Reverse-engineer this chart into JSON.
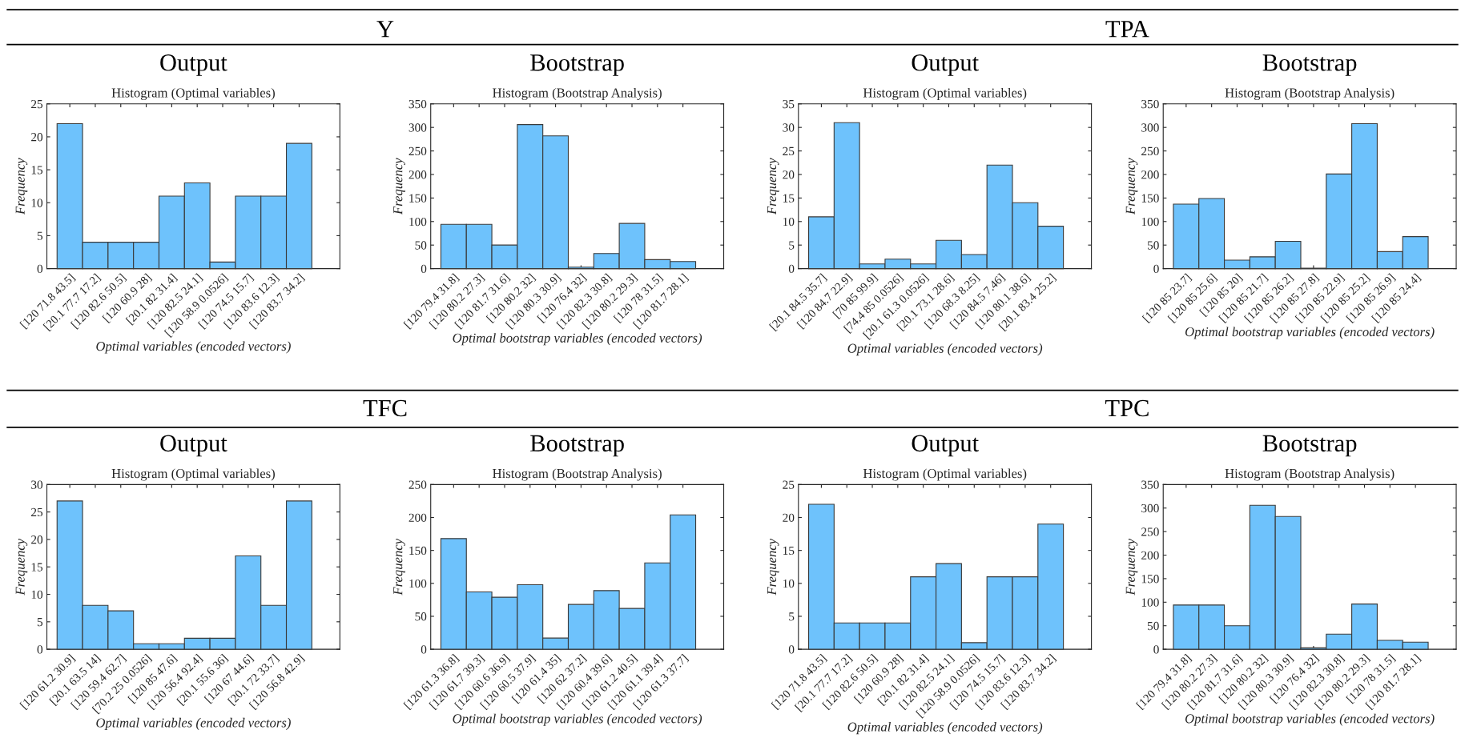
{
  "chart_data": [
    {
      "type": "bar",
      "title": "Output",
      "subtitle": "Histogram (Optimal variables)",
      "xlabel": "Optimal variables (encoded vectors)",
      "ylabel": "Frequency",
      "annotations": [
        "Y"
      ],
      "color": "#6ec2fc",
      "categories": [
        "[120 71.8 43.5]",
        "[20.1 77.7 17.2]",
        "[120 82.6 50.5]",
        "[120 60.9 28]",
        "[20.1 82 31.4]",
        "[120 82.5 24.1]",
        "[120 58.9 0.0526]",
        "[120 74.5 15.7]",
        "[120 83.6 12.3]",
        "[120 83.7 34.2]"
      ],
      "values": [
        22,
        4,
        4,
        4,
        11,
        13,
        1,
        11,
        11,
        19
      ],
      "ylim": [
        0,
        25
      ],
      "yticks": [
        0,
        5,
        10,
        15,
        20,
        25
      ]
    },
    {
      "type": "bar",
      "title": "Bootstrap",
      "subtitle": "Histogram (Bootstrap Analysis)",
      "xlabel": "Optimal bootstrap variables (encoded vectors)",
      "ylabel": "Frequency",
      "color": "#6ec2fc",
      "categories": [
        "[120 79.4 31.8]",
        "[120 80.2 27.3]",
        "[120 81.7 31.6]",
        "[120 80.2 32]",
        "[120 80.3 30.9]",
        "[120 76.4 32]",
        "[120 82.3 30.8]",
        "[120 80.2 29.3]",
        "[120 78 31.5]",
        "[120 81.7 28.1]"
      ],
      "values": [
        94,
        94,
        50,
        306,
        282,
        3,
        32,
        96,
        19,
        15
      ],
      "ylim": [
        0,
        350
      ],
      "yticks": [
        0,
        50,
        100,
        150,
        200,
        250,
        300,
        350
      ]
    },
    {
      "type": "bar",
      "title": "Output",
      "subtitle": "Histogram (Optimal variables)",
      "xlabel": "Optimal variables (encoded vectors)",
      "ylabel": "Frequency",
      "annotations": [
        "TPA"
      ],
      "color": "#6ec2fc",
      "categories": [
        "[20.1 84.5 35.7]",
        "[120 84.7 22.9]",
        "[70 85 99.9]",
        "[74.4 85 0.0526]",
        "[20.1 61.3 0.0526]",
        "[20.1 73.1 28.6]",
        "[120 68.3 8.25]",
        "[120 84.5 7.46]",
        "[120 80.1 38.6]",
        "[20.1 83.4 25.2]"
      ],
      "values": [
        11,
        31,
        1,
        2,
        1,
        6,
        3,
        22,
        14,
        9
      ],
      "ylim": [
        0,
        35
      ],
      "yticks": [
        0,
        5,
        10,
        15,
        20,
        25,
        30,
        35
      ]
    },
    {
      "type": "bar",
      "title": "Bootstrap",
      "subtitle": "Histogram (Bootstrap Analysis)",
      "xlabel": "Optimal bootstrap variables (encoded vectors)",
      "ylabel": "Frequency",
      "color": "#6ec2fc",
      "categories": [
        "[120 85 23.7]",
        "[120 85 25.6]",
        "[120 85 20]",
        "[120 85 21.7]",
        "[120 85 26.2]",
        "[120 85 27.8]",
        "[120 85 22.9]",
        "[120 85 25.2]",
        "[120 85 26.9]",
        "[120 85 24.4]"
      ],
      "values": [
        137,
        149,
        18,
        25,
        58,
        1,
        201,
        308,
        36,
        68
      ],
      "ylim": [
        0,
        350
      ],
      "yticks": [
        0,
        50,
        100,
        150,
        200,
        250,
        300,
        350
      ]
    },
    {
      "type": "bar",
      "title": "Output",
      "subtitle": "Histogram (Optimal variables)",
      "xlabel": "Optimal variables (encoded vectors)",
      "ylabel": "Frequency",
      "annotations": [
        "TFC"
      ],
      "color": "#6ec2fc",
      "categories": [
        "[120 61.2 30.9]",
        "[20.1 63.5 14]",
        "[120 59.4 62.7]",
        "[70.2 25 0.0526]",
        "[120 85 47.6]",
        "[120 56.4 92.4]",
        "[20.1 55.6 36]",
        "[120 67 44.6]",
        "[20.1 72 33.7]",
        "[120 56.8 42.9]"
      ],
      "values": [
        27,
        8,
        7,
        1,
        1,
        2,
        2,
        17,
        8,
        27
      ],
      "ylim": [
        0,
        30
      ],
      "yticks": [
        0,
        5,
        10,
        15,
        20,
        25,
        30
      ]
    },
    {
      "type": "bar",
      "title": "Bootstrap",
      "subtitle": "Histogram (Bootstrap Analysis)",
      "xlabel": "Optimal bootstrap variables (encoded vectors)",
      "ylabel": "Frequency",
      "color": "#6ec2fc",
      "categories": [
        "[120 61.3 36.8]",
        "[120 61.7 39.3]",
        "[120 60.6 36.9]",
        "[120 60.5 37.9]",
        "[120 61.4 35]",
        "[120 62 37.2]",
        "[120 60.4 39.6]",
        "[120 61.2 40.5]",
        "[120 61.1 39.4]",
        "[120 61.3 37.7]"
      ],
      "values": [
        168,
        87,
        79,
        98,
        17,
        68,
        89,
        62,
        131,
        204
      ],
      "ylim": [
        0,
        250
      ],
      "yticks": [
        0,
        50,
        100,
        150,
        200,
        250
      ]
    },
    {
      "type": "bar",
      "title": "Output",
      "subtitle": "Histogram (Optimal variables)",
      "xlabel": "Optimal variables (encoded vectors)",
      "ylabel": "Frequency",
      "annotations": [
        "TPC"
      ],
      "color": "#6ec2fc",
      "categories": [
        "[120 71.8 43.5]",
        "[20.1 77.7 17.2]",
        "[120 82.6 50.5]",
        "[120 60.9 28]",
        "[20.1 82 31.4]",
        "[120 82.5 24.1]",
        "[120 58.9 0.0526]",
        "[120 74.5 15.7]",
        "[120 83.6 12.3]",
        "[120 83.7 34.2]"
      ],
      "values": [
        22,
        4,
        4,
        4,
        11,
        13,
        1,
        11,
        11,
        19
      ],
      "ylim": [
        0,
        25
      ],
      "yticks": [
        0,
        5,
        10,
        15,
        20,
        25
      ]
    },
    {
      "type": "bar",
      "title": "Bootstrap",
      "subtitle": "Histogram (Bootstrap Analysis)",
      "xlabel": "Optimal bootstrap variables (encoded vectors)",
      "ylabel": "Frequency",
      "color": "#6ec2fc",
      "categories": [
        "[120 79.4 31.8]",
        "[120 80.2 27.3]",
        "[120 81.7 31.6]",
        "[120 80.2 32]",
        "[120 80.3 30.9]",
        "[120 76.4 32]",
        "[120 82.3 30.8]",
        "[120 80.2 29.3]",
        "[120 78 31.5]",
        "[120 81.7 28.1]"
      ],
      "values": [
        94,
        94,
        50,
        306,
        282,
        3,
        32,
        96,
        19,
        15
      ],
      "ylim": [
        0,
        350
      ],
      "yticks": [
        0,
        50,
        100,
        150,
        200,
        250,
        300,
        350
      ]
    }
  ]
}
